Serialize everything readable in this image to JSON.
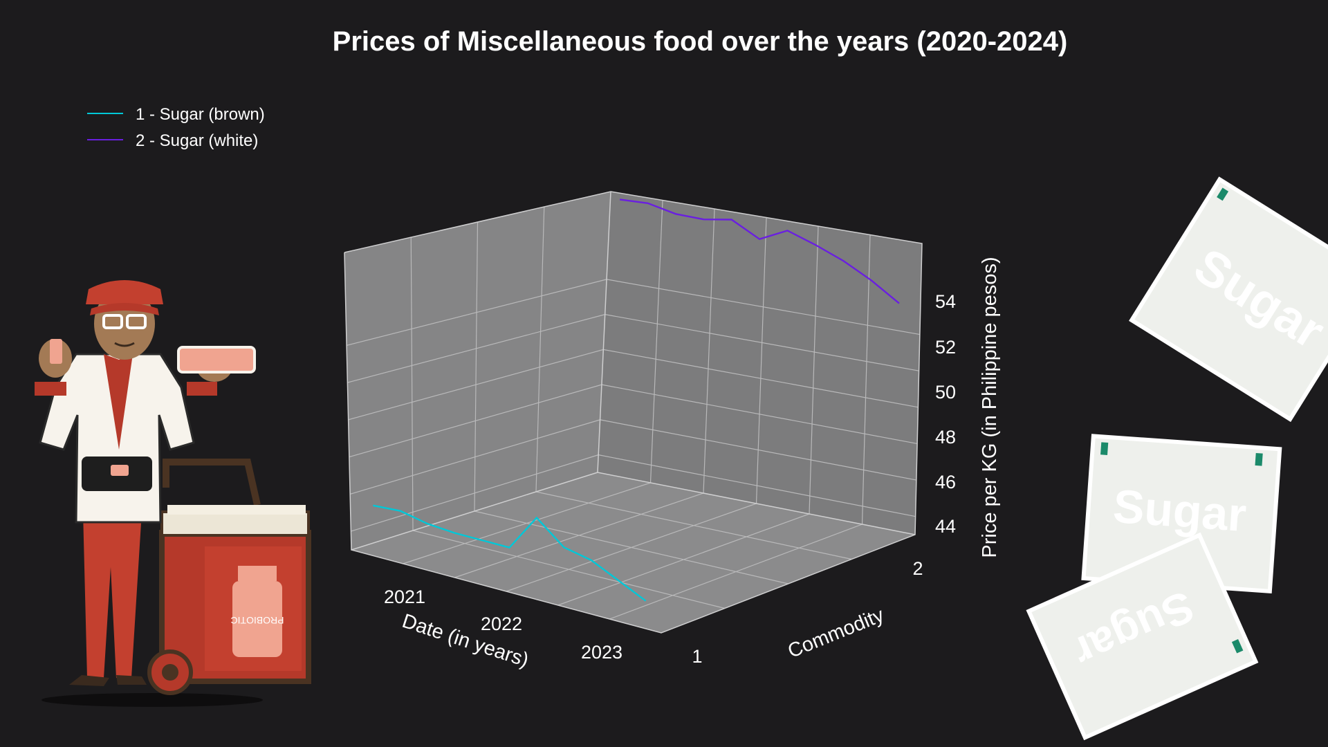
{
  "chart_data": {
    "type": "line",
    "title": "Prices of Miscellaneous food over the years (2020-2024)",
    "xlabel": "Date (in years)",
    "ylabel": "Commodity",
    "zlabel": "Price per KG (in Philippine pesos)",
    "x_ticks": [
      "2021",
      "2022",
      "2023"
    ],
    "y_ticks": [
      "1",
      "2"
    ],
    "z_ticks": [
      "44",
      "46",
      "48",
      "50",
      "52",
      "54"
    ],
    "zlim": [
      43,
      59
    ],
    "legend_position": "top-left",
    "series": [
      {
        "name": "1 - Sugar (brown)",
        "commodity": 1,
        "color": "#00c8d8",
        "x": [
          "2020-07",
          "2020-10",
          "2021-01",
          "2021-04",
          "2021-07",
          "2021-10",
          "2022-01",
          "2022-04",
          "2022-07",
          "2022-10",
          "2023-01"
        ],
        "values": [
          45.7,
          45.8,
          45.5,
          45.4,
          45.4,
          45.4,
          47.4,
          46.2,
          45.9,
          45.2,
          44.5
        ]
      },
      {
        "name": "2 - Sugar (white)",
        "commodity": 2,
        "color": "#6a1fe0",
        "x": [
          "2020-07",
          "2020-10",
          "2021-01",
          "2021-04",
          "2021-07",
          "2021-10",
          "2022-01",
          "2022-04",
          "2022-07",
          "2022-10",
          "2023-01"
        ],
        "values": [
          58.8,
          58.9,
          58.6,
          58.6,
          58.9,
          58.1,
          58.9,
          58.4,
          57.8,
          57.0,
          56.0
        ]
      }
    ]
  },
  "illustrations": {
    "vendor_cart_label": "PROBIOTIC",
    "packet_text": "Sugar"
  }
}
